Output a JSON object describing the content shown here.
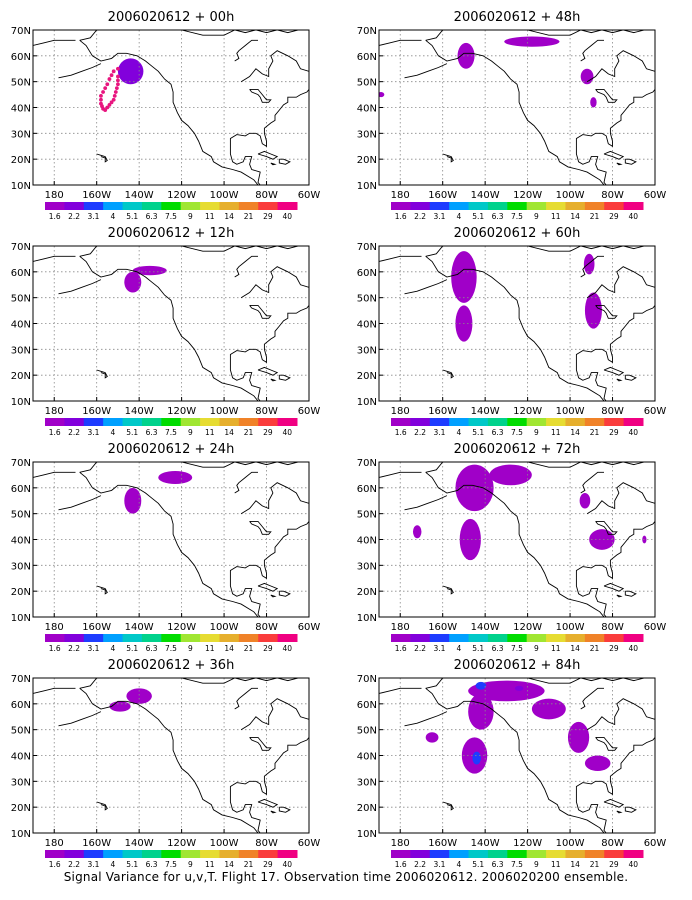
{
  "caption": "Signal Variance for u,v,T. Flight 17. Observation time 2006020612. 2006020200 ensemble.",
  "colorbar": {
    "labels": [
      "1.6",
      "2.2",
      "3.1",
      "4",
      "5.1",
      "6.3",
      "7.5",
      "9",
      "11",
      "14",
      "21",
      "29",
      "40"
    ],
    "colors": [
      "#a000c8",
      "#8200dc",
      "#1e3cff",
      "#00a0ff",
      "#00c8c8",
      "#00d28c",
      "#00dc00",
      "#a0e632",
      "#e6dc32",
      "#e6af2d",
      "#f08228",
      "#fa3c3c",
      "#f00082"
    ]
  },
  "chart_data": [
    {
      "type": "heatmap",
      "title": "2006020612 + 00h",
      "xlabel": "",
      "ylabel": "",
      "x_ticks": [
        "180",
        "160W",
        "140W",
        "120W",
        "100W",
        "80W",
        "60W"
      ],
      "y_ticks": [
        "10N",
        "20N",
        "30N",
        "40N",
        "50N",
        "60N",
        "70N"
      ],
      "xlim": [
        -190,
        -60
      ],
      "ylim": [
        10,
        70
      ],
      "grid": true,
      "regions": [
        {
          "name": "",
          "lon": -144,
          "lat": 54,
          "rlon": 6,
          "rlat": 5,
          "level": 1
        }
      ],
      "track": [
        [
          -150,
          55
        ],
        [
          -152,
          54
        ],
        [
          -153,
          52.5
        ],
        [
          -154,
          51
        ],
        [
          -155,
          49
        ],
        [
          -156,
          47.5
        ],
        [
          -157,
          46
        ],
        [
          -158,
          44.5
        ],
        [
          -158,
          43
        ],
        [
          -158,
          41.5
        ],
        [
          -157.5,
          40.5
        ],
        [
          -157,
          39.5
        ],
        [
          -156,
          39
        ],
        [
          -155,
          40
        ],
        [
          -154,
          41
        ],
        [
          -153,
          42
        ],
        [
          -152,
          43
        ],
        [
          -151.5,
          44.5
        ],
        [
          -151,
          46
        ],
        [
          -150.5,
          47.5
        ],
        [
          -150,
          49
        ],
        [
          -150,
          50.5
        ],
        [
          -150,
          52
        ]
      ]
    },
    {
      "type": "heatmap",
      "title": "2006020612 + 48h",
      "xlabel": "",
      "ylabel": "",
      "x_ticks": [
        "180",
        "160W",
        "140W",
        "120W",
        "100W",
        "80W",
        "60W"
      ],
      "y_ticks": [
        "10N",
        "20N",
        "30N",
        "40N",
        "50N",
        "60N",
        "70N"
      ],
      "xlim": [
        -190,
        -60
      ],
      "ylim": [
        10,
        70
      ],
      "grid": true,
      "regions": [
        {
          "name": "",
          "lon": -149,
          "lat": 60,
          "rlon": 4,
          "rlat": 5,
          "level": 0
        },
        {
          "name": "",
          "lon": -118,
          "lat": 65.5,
          "rlon": 13,
          "rlat": 2,
          "level": 0
        },
        {
          "name": "",
          "lon": -92,
          "lat": 52,
          "rlon": 3,
          "rlat": 3,
          "level": 0
        },
        {
          "name": "",
          "lon": -89,
          "lat": 42,
          "rlon": 1.5,
          "rlat": 2,
          "level": 0
        },
        {
          "name": "",
          "lon": -189,
          "lat": 45,
          "rlon": 1.5,
          "rlat": 1,
          "level": 0
        }
      ],
      "track": []
    },
    {
      "type": "heatmap",
      "title": "2006020612 + 12h",
      "xlabel": "",
      "ylabel": "",
      "x_ticks": [
        "180",
        "160W",
        "140W",
        "120W",
        "100W",
        "80W",
        "60W"
      ],
      "y_ticks": [
        "10N",
        "20N",
        "30N",
        "40N",
        "50N",
        "60N",
        "70N"
      ],
      "xlim": [
        -190,
        -60
      ],
      "ylim": [
        10,
        70
      ],
      "grid": true,
      "regions": [
        {
          "name": "",
          "lon": -135,
          "lat": 60.5,
          "rlon": 8,
          "rlat": 1.8,
          "level": 0
        },
        {
          "name": "",
          "lon": -143,
          "lat": 56,
          "rlon": 4,
          "rlat": 4,
          "level": 0
        }
      ],
      "track": []
    },
    {
      "type": "heatmap",
      "title": "2006020612 + 60h",
      "xlabel": "",
      "ylabel": "",
      "x_ticks": [
        "180",
        "160W",
        "140W",
        "120W",
        "100W",
        "80W",
        "60W"
      ],
      "y_ticks": [
        "10N",
        "20N",
        "30N",
        "40N",
        "50N",
        "60N",
        "70N"
      ],
      "xlim": [
        -190,
        -60
      ],
      "ylim": [
        10,
        70
      ],
      "grid": true,
      "regions": [
        {
          "name": "",
          "lon": -150,
          "lat": 58,
          "rlon": 6,
          "rlat": 10,
          "level": 0
        },
        {
          "name": "",
          "lon": -150,
          "lat": 40,
          "rlon": 4,
          "rlat": 7,
          "level": 0
        },
        {
          "name": "",
          "lon": -91,
          "lat": 63,
          "rlon": 2.5,
          "rlat": 4,
          "level": 0
        },
        {
          "name": "",
          "lon": -89,
          "lat": 45,
          "rlon": 4,
          "rlat": 7,
          "level": 0
        }
      ],
      "track": []
    },
    {
      "type": "heatmap",
      "title": "2006020612 + 24h",
      "xlabel": "",
      "ylabel": "",
      "x_ticks": [
        "180",
        "160W",
        "140W",
        "120W",
        "100W",
        "80W",
        "60W"
      ],
      "y_ticks": [
        "10N",
        "20N",
        "30N",
        "40N",
        "50N",
        "60N",
        "70N"
      ],
      "xlim": [
        -190,
        -60
      ],
      "ylim": [
        10,
        70
      ],
      "grid": true,
      "regions": [
        {
          "name": "",
          "lon": -143,
          "lat": 55,
          "rlon": 4,
          "rlat": 5,
          "level": 0
        },
        {
          "name": "",
          "lon": -123,
          "lat": 64,
          "rlon": 8,
          "rlat": 2.5,
          "level": 0
        }
      ],
      "track": []
    },
    {
      "type": "heatmap",
      "title": "2006020612 + 72h",
      "xlabel": "",
      "ylabel": "",
      "x_ticks": [
        "180",
        "160W",
        "140W",
        "120W",
        "100W",
        "80W",
        "60W"
      ],
      "y_ticks": [
        "10N",
        "20N",
        "30N",
        "40N",
        "50N",
        "60N",
        "70N"
      ],
      "xlim": [
        -190,
        -60
      ],
      "ylim": [
        10,
        70
      ],
      "grid": true,
      "regions": [
        {
          "name": "",
          "lon": -145,
          "lat": 60,
          "rlon": 9,
          "rlat": 9,
          "level": 0
        },
        {
          "name": "",
          "lon": -128,
          "lat": 65,
          "rlon": 10,
          "rlat": 4,
          "level": 0
        },
        {
          "name": "",
          "lon": -147,
          "lat": 40,
          "rlon": 5,
          "rlat": 8,
          "level": 0
        },
        {
          "name": "",
          "lon": -172,
          "lat": 43,
          "rlon": 2,
          "rlat": 2.5,
          "level": 0
        },
        {
          "name": "",
          "lon": -93,
          "lat": 55,
          "rlon": 2.5,
          "rlat": 3,
          "level": 0
        },
        {
          "name": "",
          "lon": -85,
          "lat": 40,
          "rlon": 6,
          "rlat": 4,
          "level": 0
        },
        {
          "name": "",
          "lon": -65,
          "lat": 40,
          "rlon": 1,
          "rlat": 1.5,
          "level": 0
        }
      ],
      "track": []
    },
    {
      "type": "heatmap",
      "title": "2006020612 + 36h",
      "xlabel": "",
      "ylabel": "",
      "x_ticks": [
        "180",
        "160W",
        "140W",
        "120W",
        "100W",
        "80W",
        "60W"
      ],
      "y_ticks": [
        "10N",
        "20N",
        "30N",
        "40N",
        "50N",
        "60N",
        "70N"
      ],
      "xlim": [
        -190,
        -60
      ],
      "ylim": [
        10,
        70
      ],
      "grid": true,
      "regions": [
        {
          "name": "",
          "lon": -140,
          "lat": 63,
          "rlon": 6,
          "rlat": 3,
          "level": 0
        },
        {
          "name": "",
          "lon": -149,
          "lat": 59,
          "rlon": 5,
          "rlat": 2,
          "level": 0
        }
      ],
      "track": []
    },
    {
      "type": "heatmap",
      "title": "2006020612 + 84h",
      "xlabel": "",
      "ylabel": "",
      "x_ticks": [
        "180",
        "160W",
        "140W",
        "120W",
        "100W",
        "80W",
        "60W"
      ],
      "y_ticks": [
        "10N",
        "20N",
        "30N",
        "40N",
        "50N",
        "60N",
        "70N"
      ],
      "xlim": [
        -190,
        -60
      ],
      "ylim": [
        10,
        70
      ],
      "grid": true,
      "regions": [
        {
          "name": "",
          "lon": -130,
          "lat": 65,
          "rlon": 18,
          "rlat": 4,
          "level": 0
        },
        {
          "name": "",
          "lon": -142,
          "lat": 57,
          "rlon": 6,
          "rlat": 7,
          "level": 0
        },
        {
          "name": "",
          "lon": -145,
          "lat": 40,
          "rlon": 6,
          "rlat": 7,
          "level": 0
        },
        {
          "name": "",
          "lon": -165,
          "lat": 47,
          "rlon": 3,
          "rlat": 2,
          "level": 0
        },
        {
          "name": "",
          "lon": -110,
          "lat": 58,
          "rlon": 8,
          "rlat": 4,
          "level": 0
        },
        {
          "name": "",
          "lon": -96,
          "lat": 47,
          "rlon": 5,
          "rlat": 6,
          "level": 0
        },
        {
          "name": "",
          "lon": -87,
          "lat": 37,
          "rlon": 6,
          "rlat": 3,
          "level": 0
        },
        {
          "name": "",
          "lon": -142,
          "lat": 67,
          "rlon": 2.5,
          "rlat": 1.5,
          "level": 2
        },
        {
          "name": "",
          "lon": -144,
          "lat": 39,
          "rlon": 2,
          "rlat": 2.5,
          "level": 2
        },
        {
          "name": "",
          "lon": -124,
          "lat": 66,
          "rlon": 2,
          "rlat": 1,
          "level": 1
        }
      ],
      "track": []
    }
  ]
}
